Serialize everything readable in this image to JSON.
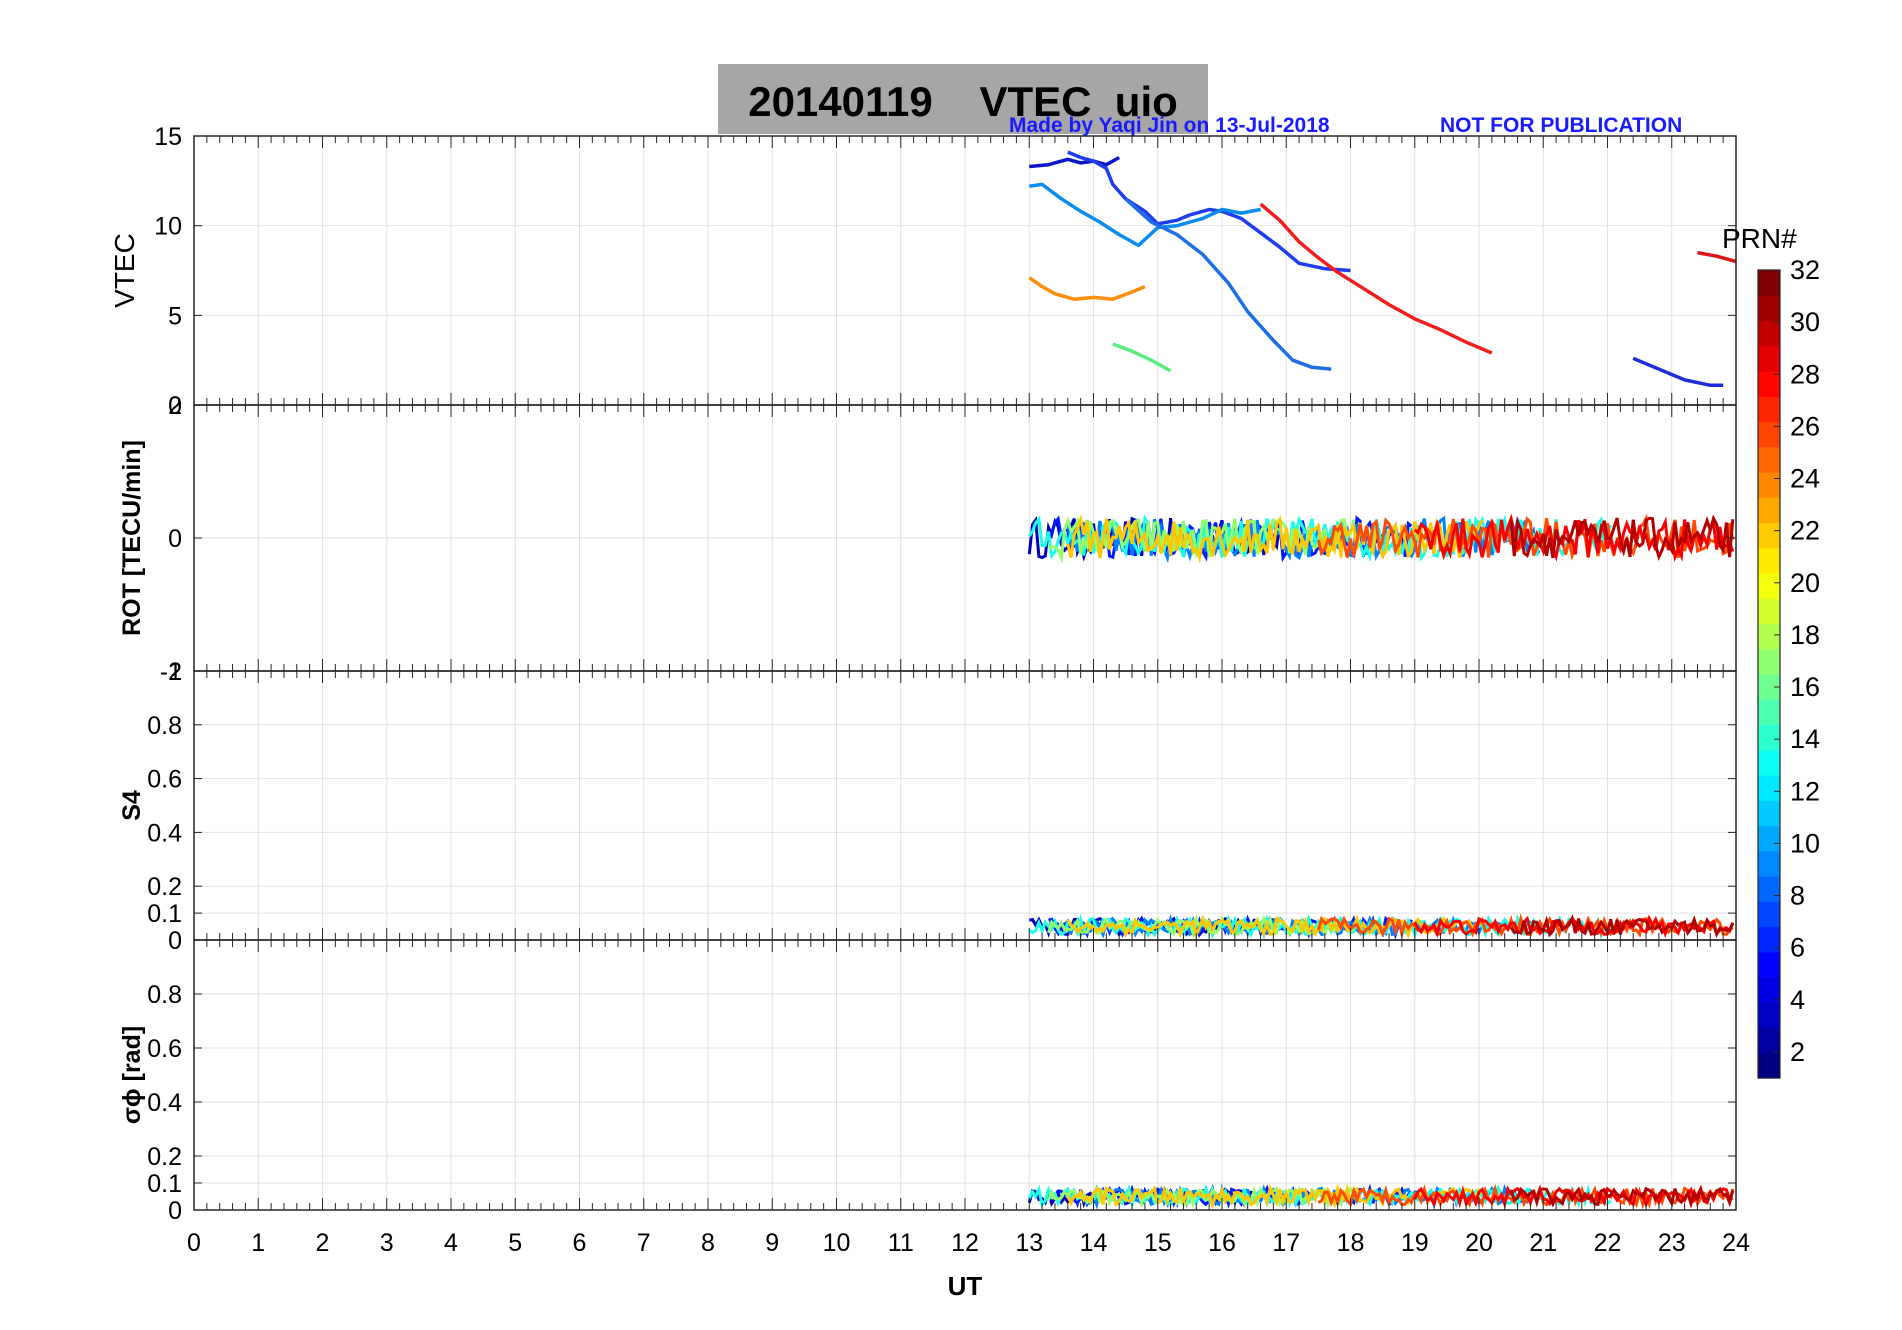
{
  "header": {
    "title": "20140119    VTEC  uio",
    "credit": "Made by Yaqi Jin on 13-Jul-2018",
    "notice": "NOT FOR PUBLICATION"
  },
  "chart_data": [
    {
      "type": "line",
      "panel": "vtec",
      "ylabel": "VTEC",
      "xlim": [
        0,
        24
      ],
      "ylim": [
        0,
        15
      ],
      "yticks": [
        "0",
        "5",
        "10",
        "15"
      ],
      "grid": true,
      "series": [
        {
          "color": "#0a14c8",
          "x": [
            13.0,
            13.3,
            13.6,
            13.8,
            14.0,
            14.2,
            14.4
          ],
          "y": [
            13.3,
            13.4,
            13.7,
            13.5,
            13.6,
            13.4,
            13.8
          ]
        },
        {
          "color": "#1e3cf0",
          "x": [
            13.6,
            13.8,
            14.0,
            14.2,
            14.3,
            14.5,
            14.8,
            15.0,
            15.3,
            15.5,
            15.8,
            16.0,
            16.3,
            16.6,
            16.9,
            17.2,
            17.6,
            18.0
          ],
          "y": [
            14.1,
            13.8,
            13.6,
            13.2,
            12.3,
            11.5,
            10.8,
            10.1,
            10.3,
            10.6,
            10.9,
            10.8,
            10.4,
            9.6,
            8.8,
            7.9,
            7.6,
            7.5
          ]
        },
        {
          "color": "#0a8cf0",
          "x": [
            13.0,
            13.2,
            13.5,
            13.8,
            14.1,
            14.4,
            14.7,
            15.0,
            15.3,
            15.7,
            16.0,
            16.3,
            16.6
          ],
          "y": [
            12.2,
            12.3,
            11.5,
            10.8,
            10.2,
            9.5,
            8.9,
            9.9,
            10.0,
            10.4,
            10.9,
            10.7,
            10.9
          ]
        },
        {
          "color": "#1e6ee6",
          "x": [
            14.5,
            14.9,
            15.3,
            15.7,
            16.1,
            16.4,
            16.8,
            17.1,
            17.4,
            17.7
          ],
          "y": [
            11.5,
            10.2,
            9.5,
            8.4,
            6.8,
            5.2,
            3.6,
            2.5,
            2.1,
            2.0
          ]
        },
        {
          "color": "#ff8c0a",
          "x": [
            13.0,
            13.2,
            13.4,
            13.7,
            14.0,
            14.3,
            14.6,
            14.8
          ],
          "y": [
            7.1,
            6.6,
            6.2,
            5.9,
            6.0,
            5.9,
            6.3,
            6.6
          ]
        },
        {
          "color": "#5aec82",
          "x": [
            14.3,
            14.6,
            14.9,
            15.2
          ],
          "y": [
            3.4,
            3.0,
            2.5,
            1.9
          ]
        },
        {
          "color": "#f01e1e",
          "x": [
            16.6,
            16.9,
            17.2,
            17.5,
            17.8,
            18.2,
            18.6,
            19.0,
            19.4,
            19.8,
            20.2
          ],
          "y": [
            11.2,
            10.3,
            9.1,
            8.2,
            7.4,
            6.5,
            5.6,
            4.8,
            4.2,
            3.5,
            2.9
          ]
        },
        {
          "color": "#1e2ddc",
          "x": [
            22.4,
            22.8,
            23.2,
            23.6,
            23.8
          ],
          "y": [
            2.6,
            2.0,
            1.4,
            1.1,
            1.1
          ]
        },
        {
          "color": "#dc1414",
          "x": [
            23.4,
            23.7,
            24.0
          ],
          "y": [
            8.5,
            8.3,
            8.0
          ]
        }
      ]
    },
    {
      "type": "scatter",
      "panel": "rot",
      "ylabel": "ROT [TECU/min]",
      "xlim": [
        0,
        24
      ],
      "ylim": [
        -2,
        2
      ],
      "yticks": [
        "-2",
        "0",
        "2"
      ],
      "grid": true,
      "data_window": [
        13,
        24
      ],
      "typical_range": [
        -0.3,
        0.3
      ]
    },
    {
      "type": "scatter",
      "panel": "s4",
      "ylabel": "S4",
      "xlim": [
        0,
        24
      ],
      "ylim": [
        0,
        1
      ],
      "yticks": [
        "0",
        "0.1",
        "0.2",
        "0.4",
        "0.6",
        "0.8",
        "1"
      ],
      "grid": true,
      "data_window": [
        13,
        24
      ],
      "typical_range": [
        0.02,
        0.08
      ]
    },
    {
      "type": "scatter",
      "panel": "sigma",
      "ylabel": "σϕ [rad]",
      "xlim": [
        0,
        24
      ],
      "ylim": [
        0,
        1
      ],
      "yticks": [
        "0",
        "0.1",
        "0.2",
        "0.4",
        "0.6",
        "0.8",
        ""
      ],
      "grid": true,
      "data_window": [
        13,
        24
      ],
      "typical_range": [
        0.02,
        0.08
      ]
    }
  ],
  "x_axis": {
    "label": "UT",
    "ticks": [
      "0",
      "1",
      "2",
      "3",
      "4",
      "5",
      "6",
      "7",
      "8",
      "9",
      "10",
      "11",
      "12",
      "13",
      "14",
      "15",
      "16",
      "17",
      "18",
      "19",
      "20",
      "21",
      "22",
      "23",
      "24"
    ]
  },
  "colorbar": {
    "title": "PRN#",
    "range": [
      1,
      32
    ],
    "ticks": [
      "2",
      "4",
      "6",
      "8",
      "10",
      "12",
      "14",
      "16",
      "18",
      "20",
      "22",
      "24",
      "26",
      "28",
      "30",
      "32"
    ],
    "colormap": "jet"
  }
}
